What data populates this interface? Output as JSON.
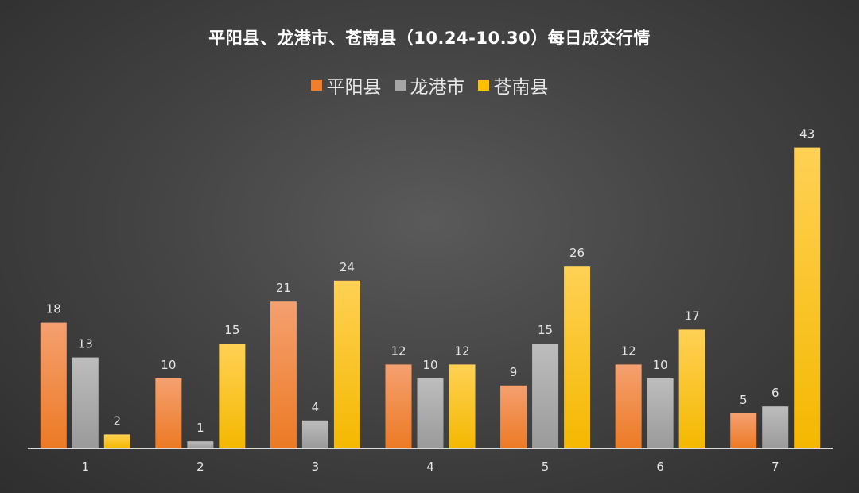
{
  "colors": {
    "pingyang": "#f07f2d",
    "longgang": "#a6a6a6",
    "cangnan": "#ffc000",
    "axis": "#d9d9d9"
  },
  "chart_data": {
    "type": "bar",
    "title": "平阳县、龙港市、苍南县（10.24-10.30）每日成交行情",
    "xlabel": "",
    "ylabel": "",
    "categories": [
      "1",
      "2",
      "3",
      "4",
      "5",
      "6",
      "7"
    ],
    "series": [
      {
        "name": "平阳县",
        "values": [
          18,
          10,
          21,
          12,
          9,
          12,
          5
        ]
      },
      {
        "name": "龙港市",
        "values": [
          13,
          1,
          4,
          10,
          15,
          10,
          6
        ]
      },
      {
        "name": "苍南县",
        "values": [
          2,
          15,
          24,
          12,
          26,
          17,
          43
        ]
      }
    ],
    "ylim": [
      0,
      45
    ],
    "grid": false,
    "legend_position": "top-center",
    "data_labels": true
  }
}
